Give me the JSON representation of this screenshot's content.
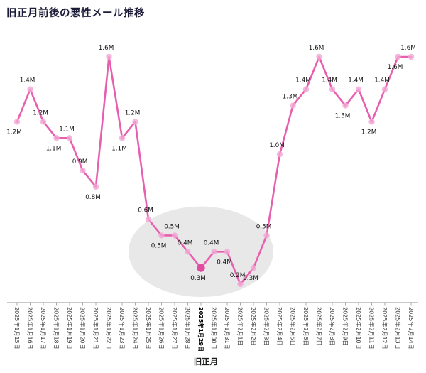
{
  "chart_data": {
    "type": "line",
    "title": "旧正月前後の悪性メール推移",
    "xlabel": "旧正月",
    "ylabel": "",
    "unit": "M",
    "grid": false,
    "legend": "none",
    "ylim": [
      0,
      1.7
    ],
    "categories": [
      "2025年1月15日",
      "2025年1月16日",
      "2025年1月17日",
      "2025年1月18日",
      "2025年1月19日",
      "2025年1月20日",
      "2025年1月21日",
      "2025年1月22日",
      "2025年1月23日",
      "2025年1月24日",
      "2025年1月25日",
      "2025年1月26日",
      "2025年1月27日",
      "2025年1月28日",
      "2025年1月29日",
      "2025年1月30日",
      "2025年1月31日",
      "2025年2月1日",
      "2025年2月2日",
      "2025年2月3日",
      "2025年2月4日",
      "2025年2月5日",
      "2025年2月6日",
      "2025年2月7日",
      "2025年2月8日",
      "2025年2月9日",
      "2025年2月10日",
      "2025年2月11日",
      "2025年2月12日",
      "2025年2月13日",
      "2025年2月14日"
    ],
    "values": [
      1.2,
      1.4,
      1.2,
      1.1,
      1.1,
      0.9,
      0.8,
      1.6,
      1.1,
      1.2,
      0.6,
      0.5,
      0.5,
      0.4,
      0.3,
      0.4,
      0.4,
      0.2,
      0.3,
      0.5,
      1.0,
      1.3,
      1.4,
      1.6,
      1.4,
      1.3,
      1.4,
      1.2,
      1.4,
      1.6,
      1.6
    ],
    "value_labels": [
      "1.2M",
      "1.4M",
      "1.2M",
      "1.1M",
      "1.1M",
      "0.9M",
      "0.8M",
      "1.6M",
      "1.1M",
      "1.2M",
      "0.6M",
      "0.5M",
      "0.5M",
      "0.4M",
      "0.3M",
      "0.4M",
      "0.4M",
      "0.2M",
      "0.3M",
      "0.5M",
      "1.0M",
      "1.3M",
      "1.4M",
      "1.6M",
      "1.4M",
      "1.3M",
      "1.4M",
      "1.2M",
      "1.4M",
      "1.6M",
      "1.6M"
    ],
    "label_positions": [
      "below",
      "above",
      "above",
      "below",
      "above",
      "above",
      "below",
      "above",
      "below",
      "above",
      "above",
      "below",
      "above",
      "above",
      "below",
      "above",
      "below",
      "above",
      "below",
      "above",
      "above",
      "above",
      "above",
      "above",
      "above",
      "below",
      "above",
      "below",
      "above",
      "below",
      "above"
    ],
    "highlight_category": "2025年1月29日",
    "highlight_value_label": "0.3M",
    "highlight_region": {
      "from": "2025年1月25日",
      "to": "2025年2月2日"
    },
    "colors": {
      "line": "#e75fae",
      "marker": "#f2a6d4",
      "highlight_marker": "#e14ba0",
      "ellipse": "#d2d2d2",
      "title": "#1b1b38",
      "axis": "#c9c9c9",
      "tick": "#a8a8a8",
      "value_label": "#141414",
      "tick_label": "#3c3c3c",
      "highlight_tick_label": "#000000"
    }
  }
}
